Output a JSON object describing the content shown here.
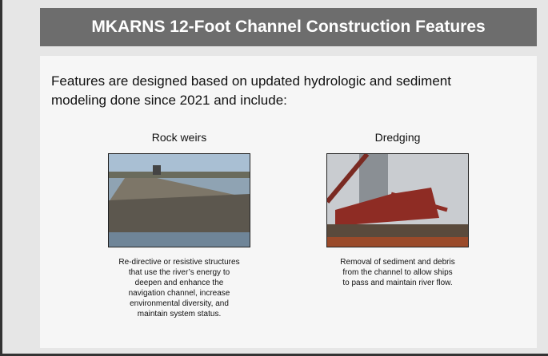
{
  "header": {
    "title": "MKARNS 12-Foot Channel Construction Features"
  },
  "intro": [
    "Features are designed based on updated hydrologic and sediment",
    "modeling done since 2021 and include:"
  ],
  "features": [
    {
      "label": "Rock weirs",
      "caption": [
        "Re-directive or resistive structures",
        "that use the river’s energy to",
        "deepen and enhance the",
        "navigation channel, increase",
        "environmental diversity, and",
        "maintain system status."
      ]
    },
    {
      "label": "Dredging",
      "caption": [
        "Removal of sediment and debris",
        "from the channel to allow ships",
        "to pass and maintain river flow."
      ]
    }
  ]
}
